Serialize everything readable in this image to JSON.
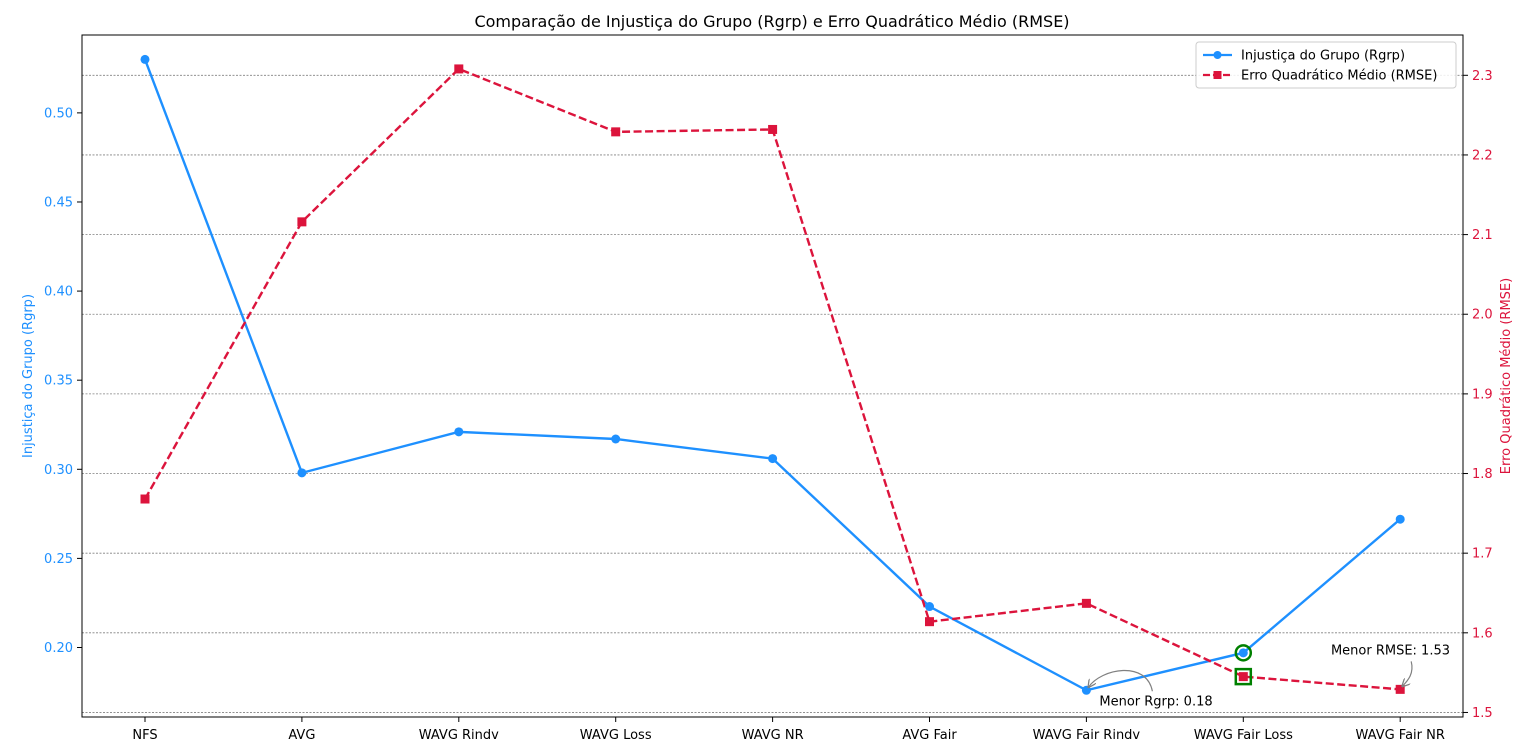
{
  "chart_data": {
    "type": "line",
    "title": "Comparação de Injustiça do Grupo (Rgrp) e Erro Quadrático Médio (RMSE)",
    "categories": [
      "NFS",
      "AVG",
      "WAVG Rindv",
      "WAVG Loss",
      "WAVG NR",
      "AVG Fair",
      "WAVG Fair Rindv",
      "WAVG Fair Loss",
      "WAVG Fair NR"
    ],
    "left_axis": {
      "label": "Injustiça do Grupo (Rgrp)",
      "color": "#1e90ff",
      "ylim": [
        0.161,
        0.5437
      ],
      "ticks": [
        0.2,
        0.25,
        0.3,
        0.35,
        0.4,
        0.45,
        0.5
      ],
      "tick_labels": [
        "0.20",
        "0.25",
        "0.30",
        "0.35",
        "0.40",
        "0.45",
        "0.50"
      ]
    },
    "right_axis": {
      "label": "Erro Quadrático Médio (RMSE)",
      "color": "#dc143c",
      "ylim": [
        1.4943,
        2.3506
      ],
      "ticks": [
        1.5,
        1.6,
        1.7,
        1.8,
        1.9,
        2.0,
        2.1,
        2.2,
        2.3
      ],
      "tick_labels": [
        "1.5",
        "1.6",
        "1.7",
        "1.8",
        "1.9",
        "2.0",
        "2.1",
        "2.2",
        "2.3"
      ]
    },
    "series": [
      {
        "name": "Injustiça do Grupo (Rgrp)",
        "axis": "left",
        "color": "#1e90ff",
        "linestyle": "solid",
        "marker": "circle",
        "values": [
          0.53,
          0.298,
          0.321,
          0.317,
          0.306,
          0.223,
          0.176,
          0.197,
          0.272
        ]
      },
      {
        "name": "Erro Quadrático Médio (RMSE)",
        "axis": "right",
        "color": "#dc143c",
        "linestyle": "dashed",
        "marker": "square",
        "values": [
          1.768,
          2.116,
          2.308,
          2.229,
          2.232,
          1.614,
          1.637,
          1.545,
          1.529
        ]
      }
    ],
    "highlights": [
      {
        "category_index": 7,
        "series": 0,
        "marker": "circle",
        "color": "#008000"
      },
      {
        "category_index": 7,
        "series": 1,
        "marker": "square",
        "color": "#008000"
      }
    ],
    "annotations": [
      {
        "text": "Menor Rgrp: 0.18",
        "category_index": 6,
        "series": 0
      },
      {
        "text": "Menor RMSE: 1.53",
        "category_index": 8,
        "series": 1
      }
    ],
    "grid": "horizontal-dashed",
    "legend": "top-right"
  }
}
